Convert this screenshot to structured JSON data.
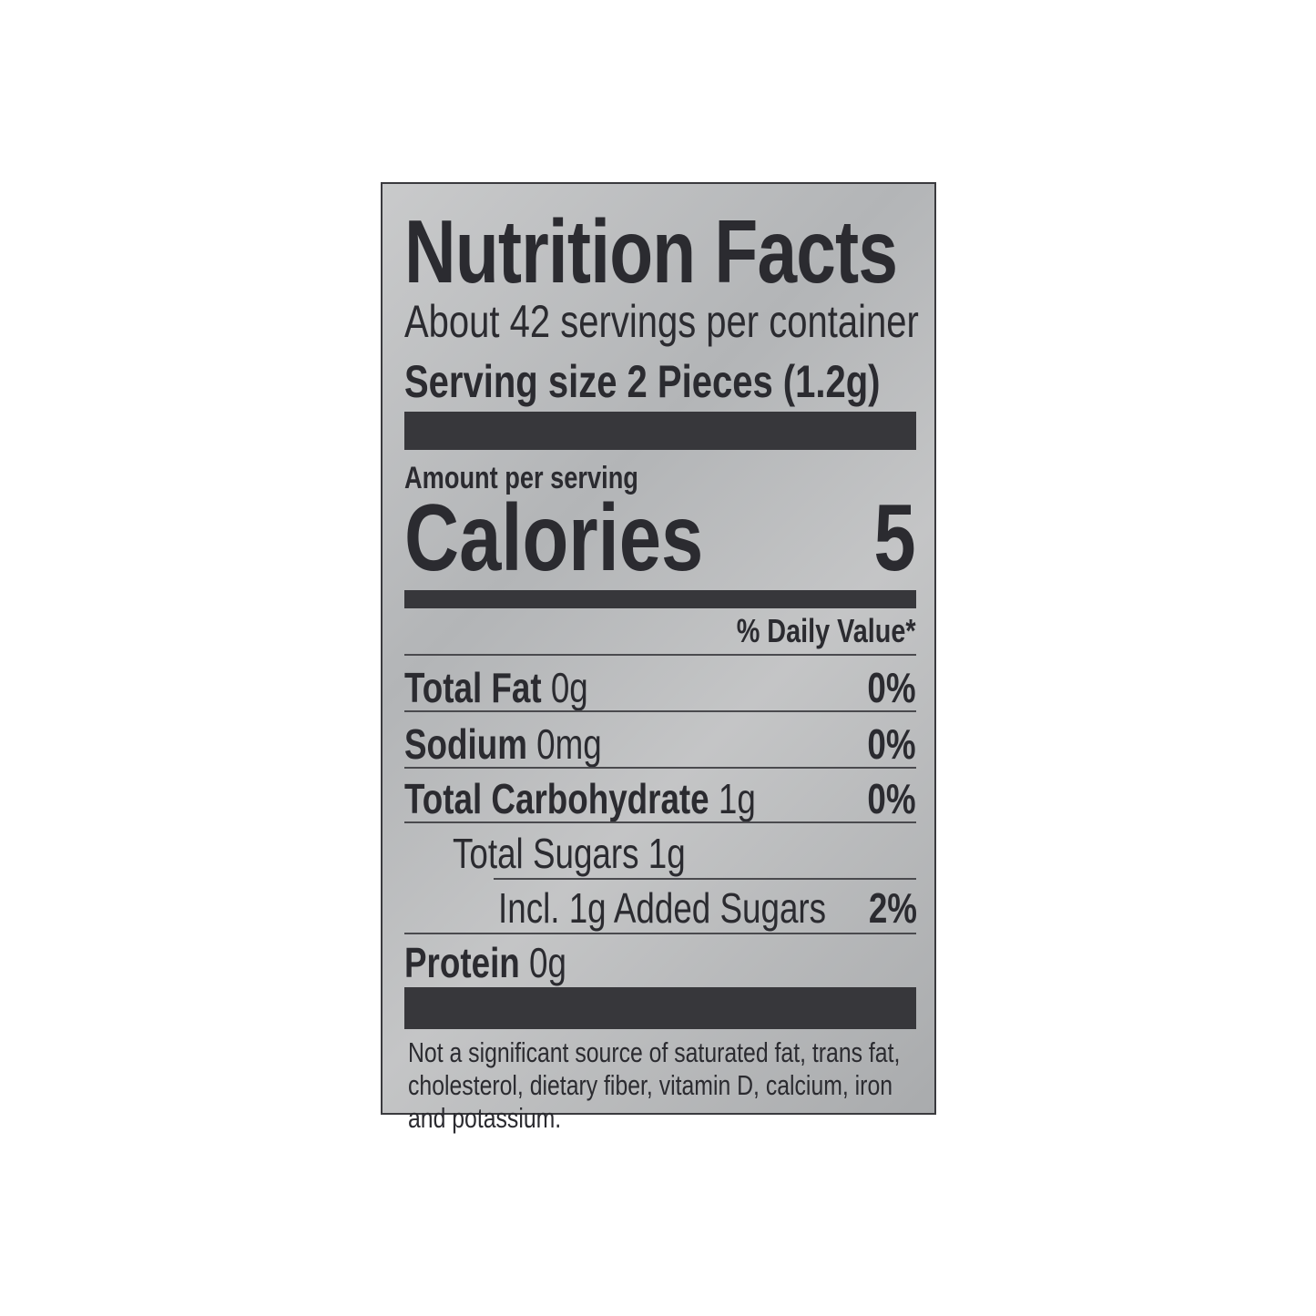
{
  "label": {
    "title": "Nutrition Facts",
    "servings": "About 42 servings per container",
    "serving_size": "Serving size 2 Pieces (1.2g)",
    "amount_per_serving": "Amount per serving",
    "calories_label": "Calories",
    "calories_value": "5",
    "daily_value_header": "% Daily Value*",
    "nutrients": [
      {
        "name": "Total Fat",
        "amount": "0g",
        "dv": "0%"
      },
      {
        "name": "Sodium",
        "amount": "0mg",
        "dv": "0%"
      },
      {
        "name": "Total Carbohydrate",
        "amount": "1g",
        "dv": "0%"
      },
      {
        "name": "",
        "amount": "Total Sugars 1g",
        "dv": ""
      },
      {
        "name": "",
        "amount": "Incl. 1g Added Sugars",
        "dv": "2%"
      },
      {
        "name": "Protein",
        "amount": "0g",
        "dv": ""
      }
    ],
    "footnote": "Not a significant source of saturated fat, trans fat, cholesterol, dietary fiber, vitamin D, calcium, iron and potassium."
  },
  "colors": {
    "ink": "#2b2b30",
    "panel": "#bdbfc0"
  }
}
